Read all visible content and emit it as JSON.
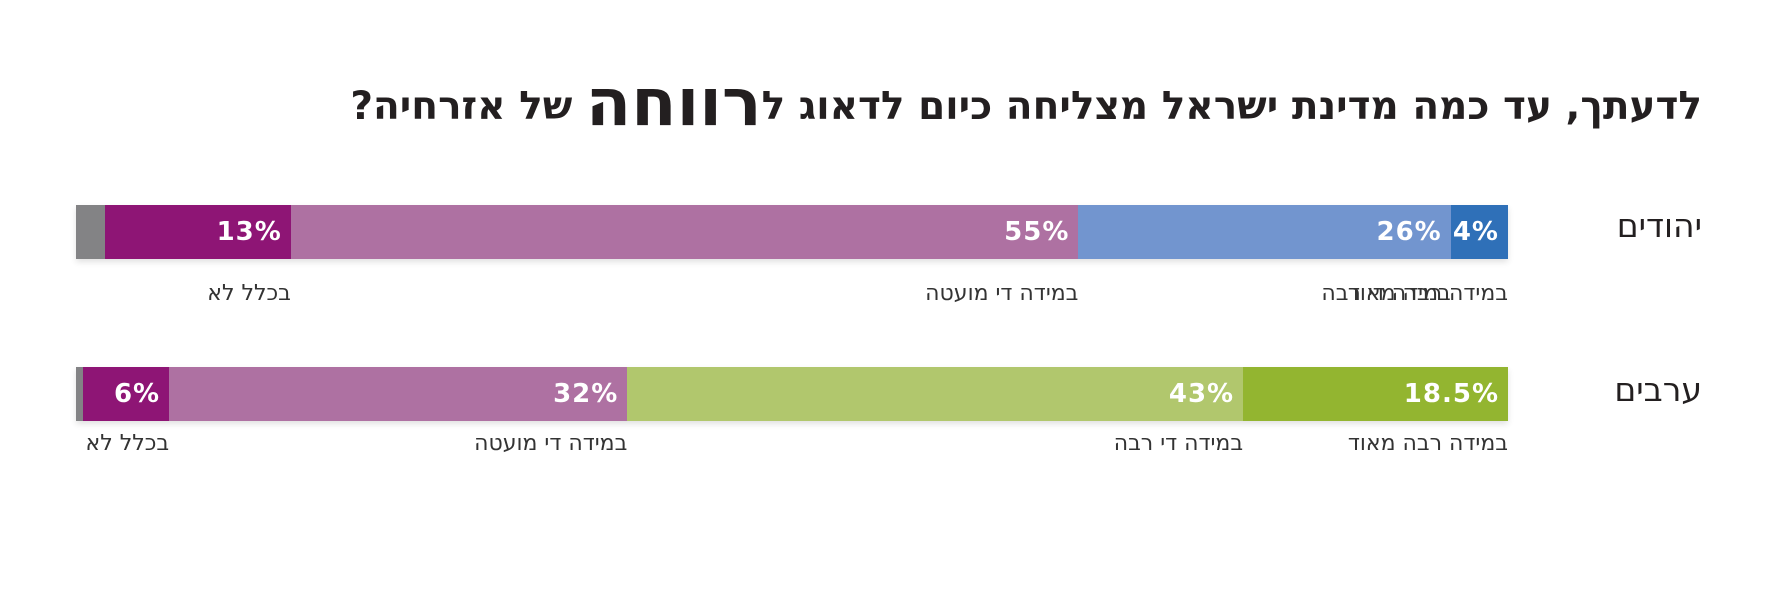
{
  "title": {
    "before": "לדעתך, עד כמה מדינת ישראל מצליחה כיום לדאוג ל",
    "emphasis": "רווחה",
    "after": " של אזרחיה?"
  },
  "chart_data": {
    "type": "bar",
    "stacked": true,
    "orientation": "horizontal",
    "direction": "rtl",
    "rows": [
      {
        "label": "יהודים",
        "segments": [
          {
            "name": "במידה רבה מאוד",
            "value": 4,
            "value_label": "4%",
            "color": "#2f70b8"
          },
          {
            "name": "במידה די רבה",
            "value": 26,
            "value_label": "26%",
            "color": "#7295cf"
          },
          {
            "name": "במידה די מועטה",
            "value": 55,
            "value_label": "55%",
            "color": "#ae71a2"
          },
          {
            "name": "בכלל לא",
            "value": 13,
            "value_label": "13%",
            "color": "#8e1575"
          },
          {
            "name": "",
            "value": 2,
            "value_label": "",
            "color": "#838385"
          }
        ]
      },
      {
        "label": "ערבים",
        "segments": [
          {
            "name": "במידה רבה מאוד",
            "value": 18.5,
            "value_label": "18.5%",
            "color": "#93b530"
          },
          {
            "name": "במידה די רבה",
            "value": 43,
            "value_label": "43%",
            "color": "#b1c76d"
          },
          {
            "name": "במידה די מועטה",
            "value": 32,
            "value_label": "32%",
            "color": "#ae71a2"
          },
          {
            "name": "בכלל לא",
            "value": 6,
            "value_label": "6%",
            "color": "#8e1575"
          },
          {
            "name": "",
            "value": 0.5,
            "value_label": "",
            "color": "#838385"
          }
        ]
      }
    ]
  }
}
